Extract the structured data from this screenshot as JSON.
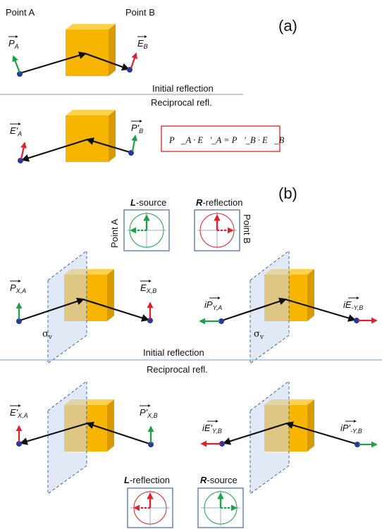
{
  "panel_a": {
    "tag": "(a)",
    "point_a": "Point A",
    "point_b": "Point B",
    "vec_pa": {
      "base": "P",
      "sub": "A"
    },
    "vec_eb": {
      "base": "E",
      "sub": "B"
    },
    "vec_ea": {
      "base": "E'",
      "sub": "A"
    },
    "vec_pb": {
      "base": "P'",
      "sub": "B"
    },
    "initial": "Initial reflection",
    "reciprocal": "Reciprocal refl.",
    "equation": "P⃗_A · E⃗'_A = P⃗'_B · E⃗_B"
  },
  "panel_b": {
    "tag": "(b)",
    "l_source": "-source",
    "r_reflection": "-reflection",
    "l_reflection": "-reflection",
    "r_source": "-source",
    "L": "L",
    "R": "R",
    "point_a": "Point A",
    "point_b": "Point B",
    "sigma": "σ",
    "sigma_sub": "v",
    "initial": "Initial reflection",
    "reciprocal": "Reciprocal refl.",
    "vec_pxa": {
      "base": "P",
      "sub": "X,A"
    },
    "vec_exb": {
      "base": "E",
      "sub": "X,B"
    },
    "vec_ipya": {
      "base": "iP",
      "sub": "Y,A"
    },
    "vec_ieyb": {
      "base": "iE",
      "sub": "-Y,B"
    },
    "vec_exa": {
      "base": "E'",
      "sub": "X,A"
    },
    "vec_pxb": {
      "base": "P'",
      "sub": "X,B"
    },
    "vec_ieyb2": {
      "base": "iE'",
      "sub": "Y,B"
    },
    "vec_ipyb": {
      "base": "iP'",
      "sub": "-Y,B"
    }
  },
  "colors": {
    "cube_front": "#f7b500",
    "cube_top": "#ffd24d",
    "cube_side": "#d89a00",
    "green": "#1ea04a",
    "red": "#e0202a",
    "blue_dot": "#2a3a9a",
    "divider": "#8fb0d8",
    "box_border": "#e0202a",
    "inset_border": "#4466aa"
  }
}
